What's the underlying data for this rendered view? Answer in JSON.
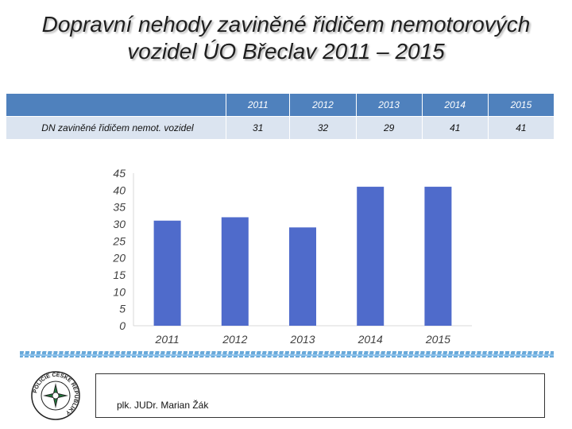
{
  "title_lines": [
    "Dopravní nehody zaviněné řidičem nemotorových",
    "vozidel ÚO Břeclav 2011 – 2015"
  ],
  "table": {
    "header_label": "",
    "years": [
      "2011",
      "2012",
      "2013",
      "2014",
      "2015"
    ],
    "row_label": "DN zaviněné řidičem nemot. vozidel",
    "values": [
      "31",
      "32",
      "29",
      "41",
      "41"
    ]
  },
  "chart_data": {
    "type": "bar",
    "categories": [
      "2011",
      "2012",
      "2013",
      "2014",
      "2015"
    ],
    "values": [
      31,
      32,
      29,
      41,
      41
    ],
    "ylim": [
      0,
      45
    ],
    "yticks": [
      "0",
      "5",
      "10",
      "15",
      "20",
      "25",
      "30",
      "35",
      "40",
      "45"
    ],
    "color": "#4f6bcb",
    "grid": false
  },
  "logo": {
    "text": "POLICIE ČESKÉ REPUBLIKY"
  },
  "footer": {
    "author": "plk. JUDr. Marian Žák"
  }
}
